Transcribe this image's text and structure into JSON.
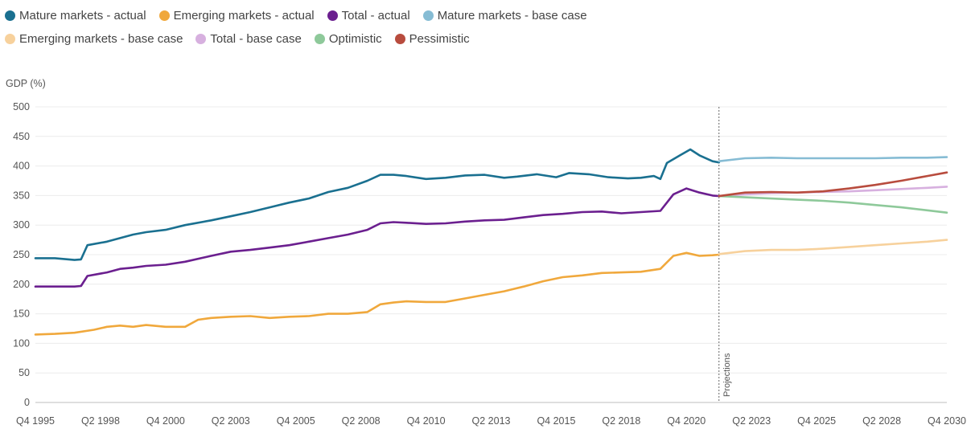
{
  "chart_data": {
    "type": "line",
    "title": "",
    "xlabel": "",
    "ylabel": "GDP (%)",
    "ylim": [
      0,
      500
    ],
    "yticks": [
      0,
      50,
      100,
      150,
      200,
      250,
      300,
      350,
      400,
      450,
      500
    ],
    "xlim": [
      1995.75,
      2030.75
    ],
    "xticks": [
      {
        "label": "Q4 1995",
        "value": 1995.75
      },
      {
        "label": "Q2 1998",
        "value": 1998.25
      },
      {
        "label": "Q4 2000",
        "value": 2000.75
      },
      {
        "label": "Q2 2003",
        "value": 2003.25
      },
      {
        "label": "Q4 2005",
        "value": 2005.75
      },
      {
        "label": "Q2 2008",
        "value": 2008.25
      },
      {
        "label": "Q4 2010",
        "value": 2010.75
      },
      {
        "label": "Q2 2013",
        "value": 2013.25
      },
      {
        "label": "Q4 2015",
        "value": 2015.75
      },
      {
        "label": "Q2 2018",
        "value": 2018.25
      },
      {
        "label": "Q4 2020",
        "value": 2020.75
      },
      {
        "label": "Q2 2023",
        "value": 2023.25
      },
      {
        "label": "Q4 2025",
        "value": 2025.75
      },
      {
        "label": "Q2 2028",
        "value": 2028.25
      },
      {
        "label": "Q4 2030",
        "value": 2030.75
      }
    ],
    "grid": true,
    "legend_position": "top-left",
    "annotation": {
      "text": "Projections",
      "x": 2022.0
    },
    "series": [
      {
        "name": "Mature markets - actual",
        "color": "#1a7090",
        "x": [
          1995.75,
          1996.5,
          1997.25,
          1997.5,
          1997.75,
          1998.5,
          1999.0,
          1999.5,
          2000.0,
          2000.75,
          2001.5,
          2002.5,
          2003.25,
          2004.0,
          2004.75,
          2005.5,
          2006.25,
          2007.0,
          2007.75,
          2008.5,
          2009.0,
          2009.5,
          2010.0,
          2010.75,
          2011.5,
          2012.25,
          2013.0,
          2013.75,
          2014.25,
          2015.0,
          2015.75,
          2016.25,
          2017.0,
          2017.75,
          2018.5,
          2019.0,
          2019.5,
          2019.75,
          2020.0,
          2020.5,
          2020.9,
          2021.25,
          2021.75,
          2022.0
        ],
        "values": [
          244,
          244,
          241,
          242,
          266,
          272,
          278,
          284,
          288,
          292,
          300,
          308,
          315,
          322,
          330,
          338,
          345,
          356,
          363,
          375,
          385,
          385,
          383,
          378,
          380,
          384,
          385,
          380,
          382,
          386,
          381,
          388,
          386,
          381,
          379,
          380,
          383,
          378,
          405,
          418,
          428,
          418,
          408,
          406
        ]
      },
      {
        "name": "Emerging markets - actual",
        "color": "#f0a83c",
        "x": [
          1995.75,
          1996.5,
          1997.25,
          1998.0,
          1998.5,
          1999.0,
          1999.5,
          2000.0,
          2000.75,
          2001.5,
          2002.0,
          2002.5,
          2003.25,
          2004.0,
          2004.75,
          2005.5,
          2006.25,
          2007.0,
          2007.75,
          2008.5,
          2009.0,
          2009.5,
          2010.0,
          2010.75,
          2011.5,
          2012.25,
          2013.0,
          2013.75,
          2014.5,
          2015.25,
          2016.0,
          2016.75,
          2017.5,
          2018.25,
          2019.0,
          2019.75,
          2020.25,
          2020.75,
          2021.25,
          2021.75,
          2022.0
        ],
        "values": [
          115,
          116,
          118,
          123,
          128,
          130,
          128,
          131,
          128,
          128,
          140,
          143,
          145,
          146,
          143,
          145,
          146,
          150,
          150,
          153,
          166,
          169,
          171,
          170,
          170,
          176,
          182,
          188,
          196,
          205,
          212,
          215,
          219,
          220,
          221,
          226,
          248,
          253,
          248,
          249,
          250
        ]
      },
      {
        "name": "Total - actual",
        "color": "#6b1f8f",
        "x": [
          1995.75,
          1996.5,
          1997.25,
          1997.5,
          1997.75,
          1998.5,
          1999.0,
          1999.5,
          2000.0,
          2000.75,
          2001.5,
          2002.5,
          2003.25,
          2004.0,
          2004.75,
          2005.5,
          2006.25,
          2007.0,
          2007.75,
          2008.5,
          2009.0,
          2009.5,
          2010.0,
          2010.75,
          2011.5,
          2012.25,
          2013.0,
          2013.75,
          2014.5,
          2015.25,
          2016.0,
          2016.75,
          2017.5,
          2018.25,
          2019.0,
          2019.75,
          2020.25,
          2020.75,
          2021.25,
          2021.75,
          2022.0
        ],
        "values": [
          196,
          196,
          196,
          197,
          214,
          220,
          226,
          228,
          231,
          233,
          238,
          248,
          255,
          258,
          262,
          266,
          272,
          278,
          284,
          292,
          303,
          305,
          304,
          302,
          303,
          306,
          308,
          309,
          313,
          317,
          319,
          322,
          323,
          320,
          322,
          324,
          352,
          362,
          355,
          350,
          349
        ]
      },
      {
        "name": "Mature markets - base case",
        "color": "#86bcd4",
        "x": [
          2022.0,
          2023.0,
          2024.0,
          2025.0,
          2026.0,
          2027.0,
          2028.0,
          2029.0,
          2030.0,
          2030.75
        ],
        "values": [
          408,
          413,
          414,
          413,
          413,
          413,
          413,
          414,
          414,
          415
        ]
      },
      {
        "name": "Emerging markets - base case",
        "color": "#f7d19c",
        "x": [
          2022.0,
          2023.0,
          2024.0,
          2025.0,
          2026.0,
          2027.0,
          2028.0,
          2029.0,
          2030.0,
          2030.75
        ],
        "values": [
          251,
          256,
          258,
          258,
          260,
          263,
          266,
          269,
          272,
          275
        ]
      },
      {
        "name": "Total - base case",
        "color": "#d7b0df",
        "x": [
          2022.0,
          2023.0,
          2024.0,
          2025.0,
          2026.0,
          2027.0,
          2028.0,
          2029.0,
          2030.0,
          2030.75
        ],
        "values": [
          349,
          352,
          354,
          355,
          356,
          357,
          359,
          361,
          363,
          365
        ]
      },
      {
        "name": "Optimistic",
        "color": "#8ec99a",
        "x": [
          2022.0,
          2023.0,
          2024.0,
          2025.0,
          2026.0,
          2027.0,
          2028.0,
          2029.0,
          2030.0,
          2030.75
        ],
        "values": [
          349,
          347,
          345,
          343,
          341,
          338,
          334,
          330,
          325,
          321
        ]
      },
      {
        "name": "Pessimistic",
        "color": "#b84c3e",
        "x": [
          2022.0,
          2023.0,
          2024.0,
          2025.0,
          2026.0,
          2027.0,
          2028.0,
          2029.0,
          2030.0,
          2030.75
        ],
        "values": [
          349,
          355,
          356,
          355,
          357,
          362,
          368,
          375,
          383,
          389
        ]
      }
    ]
  }
}
